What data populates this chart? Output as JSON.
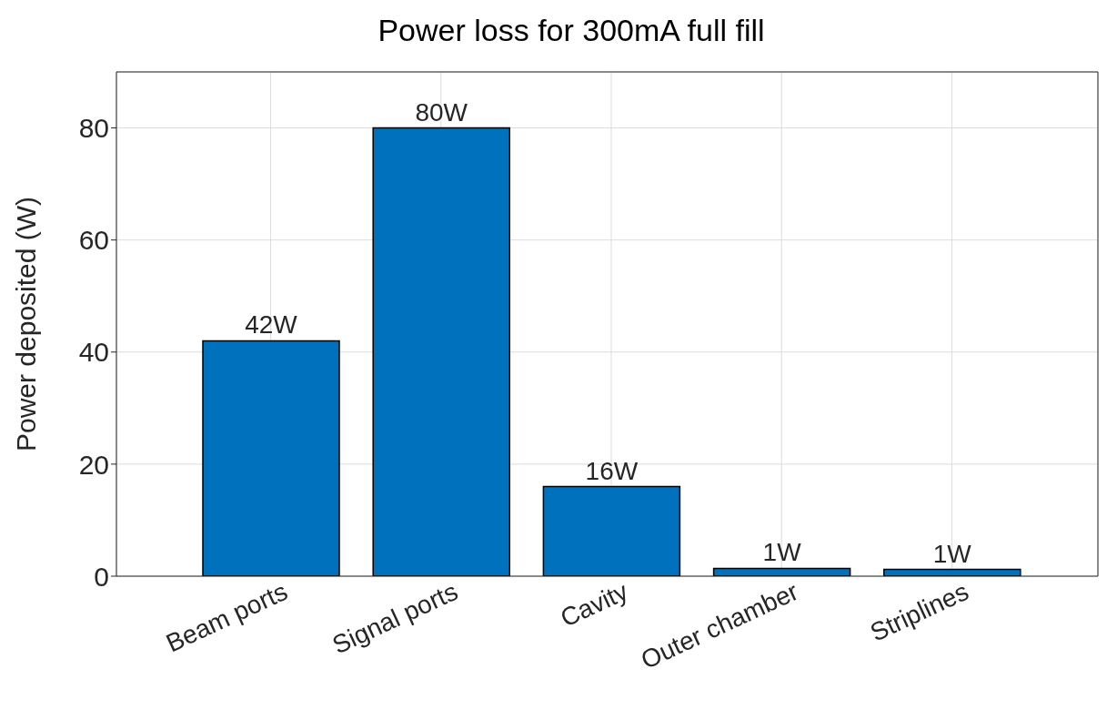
{
  "chart_data": {
    "type": "bar",
    "title": "Power loss for 300mA full fill",
    "ylabel": "Power deposited (W)",
    "categories": [
      "Beam ports",
      "Signal ports",
      "Cavity",
      "Outer chamber",
      "Striplines"
    ],
    "values": [
      42,
      80,
      16,
      1.4,
      1.2
    ],
    "value_labels": [
      "42W",
      "80W",
      "16W",
      "1W",
      "1W"
    ],
    "color": "#0072bd",
    "ylim": [
      0,
      90
    ],
    "yticks": [
      0,
      20,
      40,
      60,
      80
    ],
    "grid": true
  }
}
